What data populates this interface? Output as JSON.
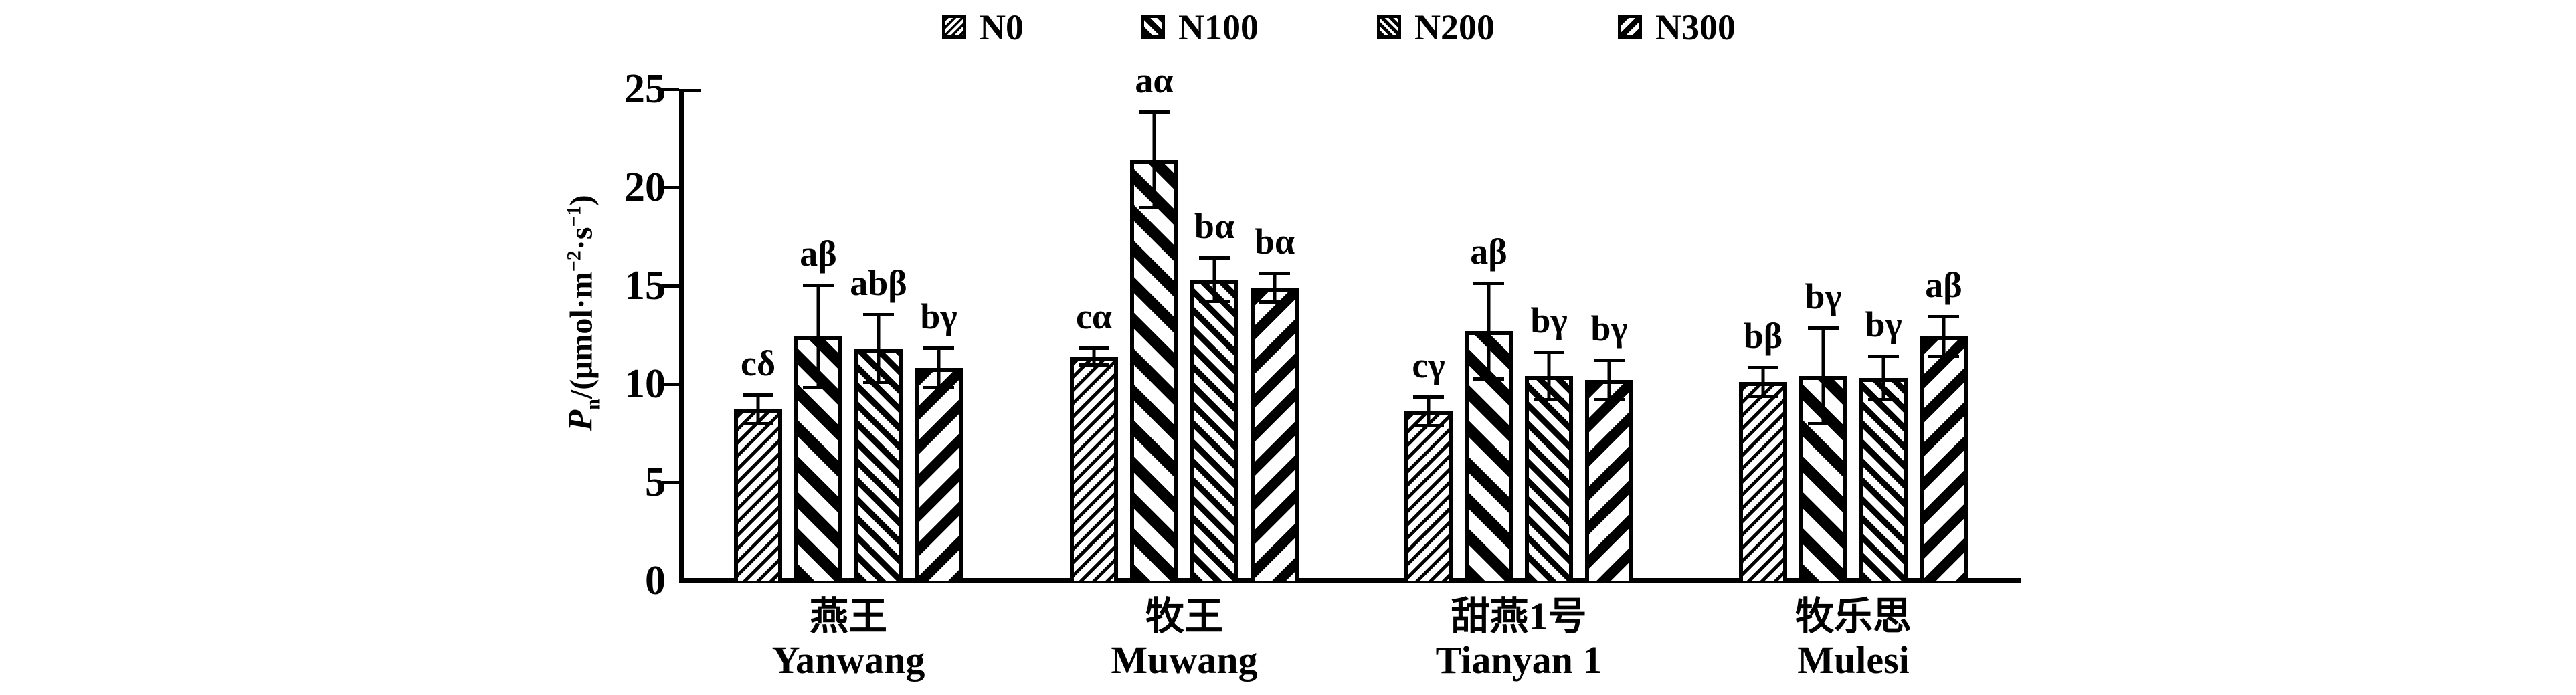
{
  "figure": {
    "background": "#ffffff",
    "ink_color": "#000000"
  },
  "legend": {
    "items": [
      {
        "label": "N0",
        "pattern": "n0"
      },
      {
        "label": "N100",
        "pattern": "n100"
      },
      {
        "label": "N200",
        "pattern": "n200"
      },
      {
        "label": "N300",
        "pattern": "n300"
      }
    ]
  },
  "y_axis": {
    "ticks": [
      0,
      5,
      10,
      15,
      20,
      25
    ],
    "min": 0,
    "max": 25,
    "label_prefix": "P",
    "label_sub": "n",
    "label_unit1": "/(μmol·m",
    "label_sup1": "−2",
    "label_unit2": "·s",
    "label_sup2": "−1",
    "label_unit3": ")"
  },
  "chart_data": {
    "type": "bar",
    "title": "",
    "xlabel": "",
    "ylabel": "Pn/(μmol·m−2·s−1)",
    "ylim": [
      0,
      25
    ],
    "grid": false,
    "legend_position": "top",
    "categories_cn": [
      "燕王",
      "牧王",
      "甜燕1号",
      "牧乐思"
    ],
    "categories_en": [
      "Yanwang",
      "Muwang",
      "Tianyan 1",
      "Mulesi"
    ],
    "series": [
      {
        "name": "N0",
        "values": [
          8.7,
          11.4,
          8.6,
          10.1
        ],
        "errors": [
          0.8,
          0.5,
          0.8,
          0.8
        ],
        "sig": [
          "cδ",
          "cα",
          "cγ",
          "bβ"
        ]
      },
      {
        "name": "N100",
        "values": [
          12.4,
          21.4,
          12.7,
          10.4
        ],
        "errors": [
          2.7,
          2.5,
          2.5,
          2.5
        ],
        "sig": [
          "aβ",
          "aα",
          "aβ",
          "bγ"
        ]
      },
      {
        "name": "N200",
        "values": [
          11.8,
          15.3,
          10.4,
          10.3
        ],
        "errors": [
          1.8,
          1.2,
          1.3,
          1.2
        ],
        "sig": [
          "abβ",
          "bα",
          "bγ",
          "bγ"
        ]
      },
      {
        "name": "N300",
        "values": [
          10.8,
          14.9,
          10.2,
          12.4
        ],
        "errors": [
          1.1,
          0.8,
          1.1,
          1.1
        ],
        "sig": [
          "bγ",
          "bα",
          "bγ",
          "aβ"
        ]
      }
    ]
  }
}
